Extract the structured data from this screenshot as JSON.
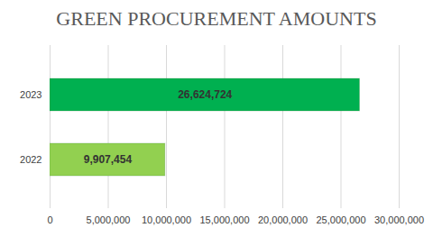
{
  "chart_data": {
    "type": "bar",
    "title": "GREEN PROCUREMENT AMOUNTS",
    "orientation": "horizontal",
    "categories": [
      "2023",
      "2022"
    ],
    "values": [
      26624724,
      9907454
    ],
    "value_labels": [
      "26,624,724",
      "9,907,454"
    ],
    "colors": [
      "#00b050",
      "#92d050"
    ],
    "xlim": [
      0,
      30000000
    ],
    "xticks": [
      0,
      {
        "value": 5000000,
        "label": "5,000,000"
      },
      {
        "value": 10000000,
        "label": "10,000,000"
      },
      {
        "value": 15000000,
        "label": "15,000,000"
      },
      {
        "value": 20000000,
        "label": "20,000,000"
      },
      {
        "value": 25000000,
        "label": "25,000,000"
      },
      {
        "value": 30000000,
        "label": "30,000,000"
      }
    ],
    "grid": true,
    "data_labels": true
  }
}
